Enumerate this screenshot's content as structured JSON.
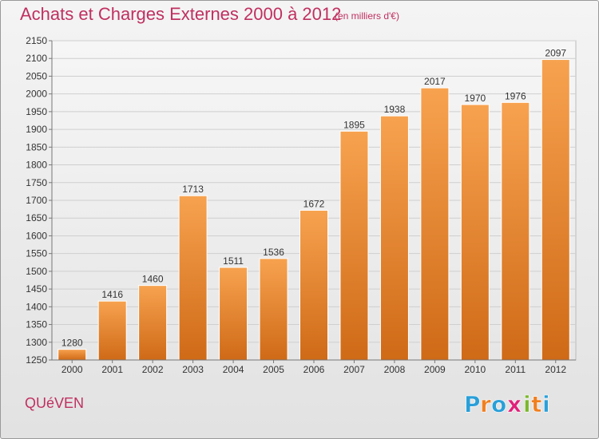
{
  "title": "Achats et Charges Externes 2000 à 2012",
  "subtitle": "(en milliers d'€)",
  "commune": "QUéVEN",
  "logo": {
    "letters": [
      "P",
      "r",
      "o",
      "x",
      "i",
      "t",
      "i"
    ],
    "colors": [
      "#2a9fd8",
      "#f07f1f",
      "#2a9fd8",
      "#e0207a",
      "#7ab82a",
      "#f07f1f",
      "#2a9fd8"
    ]
  },
  "colors": {
    "bar_top": "#f7a24f",
    "bar_bottom": "#cf6a17",
    "text": "#c03060"
  },
  "chart_data": {
    "type": "bar",
    "categories": [
      "2000",
      "2001",
      "2002",
      "2003",
      "2004",
      "2005",
      "2006",
      "2007",
      "2008",
      "2009",
      "2010",
      "2011",
      "2012"
    ],
    "values": [
      1280,
      1416,
      1460,
      1713,
      1511,
      1536,
      1672,
      1895,
      1938,
      2017,
      1970,
      1976,
      2097
    ],
    "ylim": [
      1250,
      2150
    ],
    "yticks": [
      1250,
      1300,
      1350,
      1400,
      1450,
      1500,
      1550,
      1600,
      1650,
      1700,
      1750,
      1800,
      1850,
      1900,
      1950,
      2000,
      2050,
      2100,
      2150
    ],
    "grid": true
  }
}
